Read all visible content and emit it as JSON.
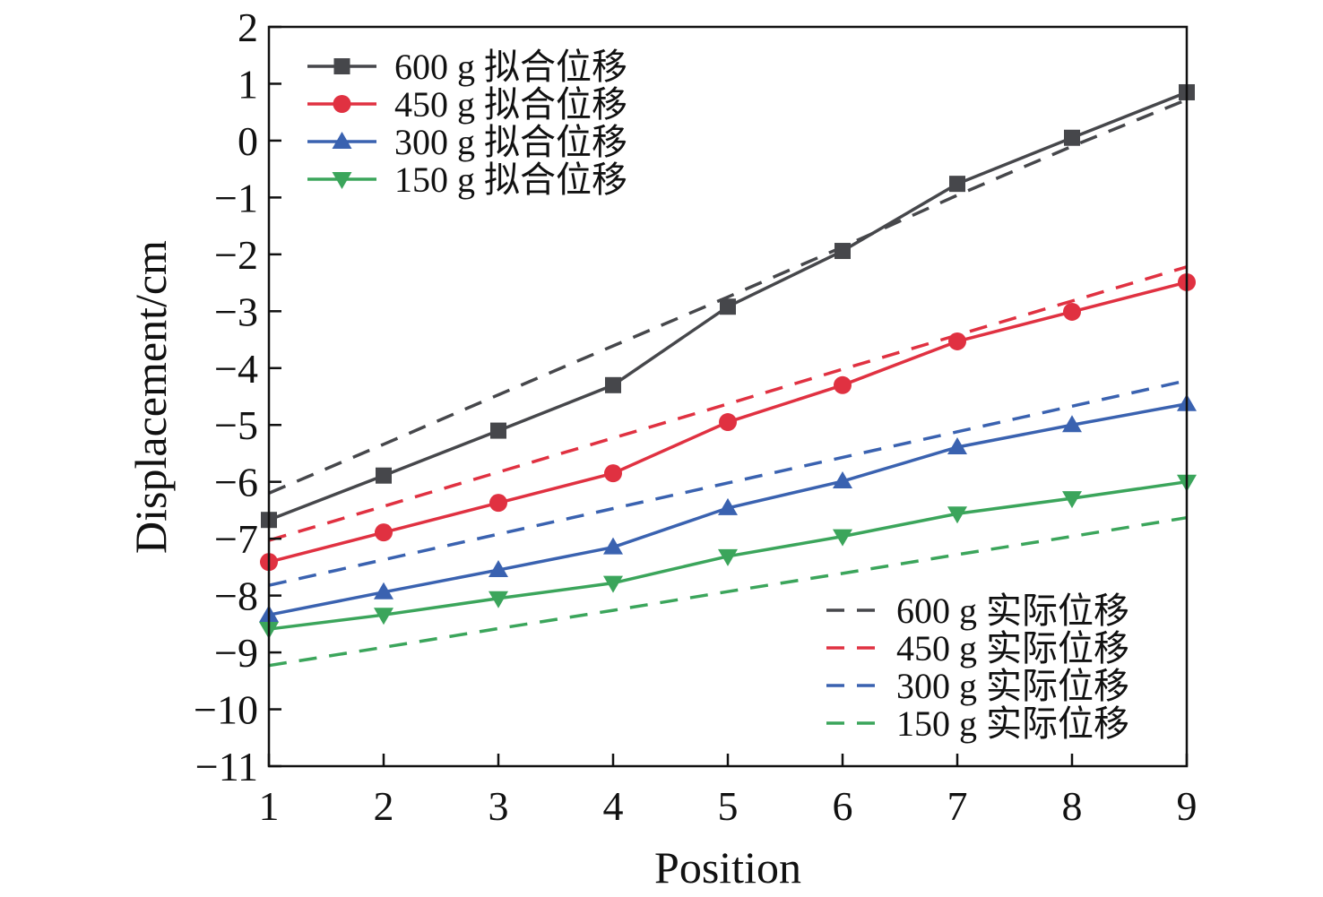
{
  "chart_data": {
    "type": "line",
    "xlabel": "Position",
    "ylabel": "Displacement/cm",
    "xlim": [
      1,
      9
    ],
    "ylim": [
      -11,
      2
    ],
    "xticks": [
      "1",
      "2",
      "3",
      "4",
      "5",
      "6",
      "7",
      "8",
      "9"
    ],
    "yticks": [
      "2",
      "1",
      "0",
      "−1",
      "−2",
      "−3",
      "−4",
      "−5",
      "−6",
      "−7",
      "−8",
      "−9",
      "−10",
      "−11"
    ],
    "x": [
      1,
      2,
      3,
      4,
      5,
      6,
      7,
      8,
      9
    ],
    "grid": false,
    "legend_fitted_placement": "top-left",
    "legend_actual_placement": "bottom-right",
    "series": [
      {
        "name": "600 g 拟合位移",
        "style": "solid",
        "marker": "square",
        "color": "#46474b",
        "values": [
          -6.67,
          -5.89,
          -5.1,
          -4.3,
          -2.92,
          -1.94,
          -0.76,
          0.05,
          0.85
        ]
      },
      {
        "name": "450 g 拟合位移",
        "style": "solid",
        "marker": "circle",
        "color": "#e03141",
        "values": [
          -7.41,
          -6.89,
          -6.37,
          -5.85,
          -4.95,
          -4.3,
          -3.53,
          -3.01,
          -2.49
        ]
      },
      {
        "name": "300 g 拟合位移",
        "style": "solid",
        "marker": "triangle-up",
        "color": "#3a62b0",
        "values": [
          -8.34,
          -7.94,
          -7.55,
          -7.15,
          -6.46,
          -5.99,
          -5.39,
          -5.0,
          -4.63
        ]
      },
      {
        "name": "150 g 拟合位移",
        "style": "solid",
        "marker": "triangle-down",
        "color": "#3ba55b",
        "values": [
          -8.59,
          -8.34,
          -8.05,
          -7.78,
          -7.31,
          -6.96,
          -6.56,
          -6.29,
          -6.0
        ]
      },
      {
        "name": "600 g 实际位移",
        "style": "dashed",
        "marker": "none",
        "color": "#46474b",
        "values": [
          -6.2,
          -5.34,
          -4.47,
          -3.61,
          -2.75,
          -1.87,
          -0.96,
          -0.1,
          0.72
        ]
      },
      {
        "name": "450 g 实际位移",
        "style": "dashed",
        "marker": "none",
        "color": "#e03141",
        "values": [
          -7.03,
          -6.43,
          -5.83,
          -5.23,
          -4.63,
          -4.02,
          -3.42,
          -2.82,
          -2.22
        ]
      },
      {
        "name": "300 g 实际位移",
        "style": "dashed",
        "marker": "none",
        "color": "#3a62b0",
        "values": [
          -7.82,
          -7.37,
          -6.92,
          -6.47,
          -6.02,
          -5.57,
          -5.12,
          -4.67,
          -4.22
        ]
      },
      {
        "name": "150 g 实际位移",
        "style": "dashed",
        "marker": "none",
        "color": "#3ba55b",
        "values": [
          -9.23,
          -8.91,
          -8.58,
          -8.26,
          -7.93,
          -7.61,
          -7.28,
          -6.96,
          -6.63
        ]
      }
    ]
  }
}
